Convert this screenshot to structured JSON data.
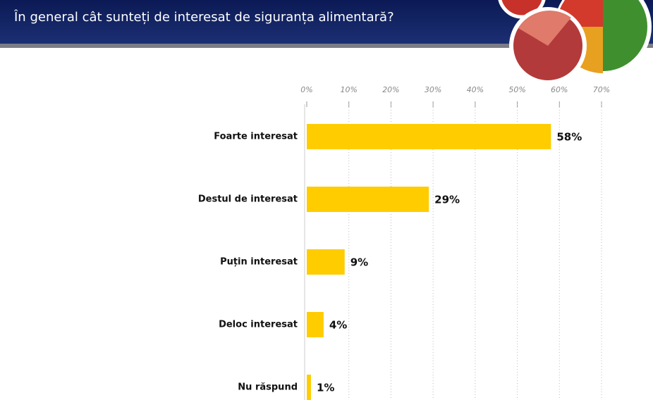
{
  "chart_data": {
    "type": "hbar",
    "title": "În general cât sunteți de interesat de siguranța alimentară?",
    "categories": [
      "Foarte interesat",
      "Destul de interesat",
      "Puțin interesat",
      "Deloc interesat",
      "Nu răspund"
    ],
    "values": [
      58,
      29,
      9,
      4,
      1
    ],
    "value_labels": [
      "58%",
      "29%",
      "9%",
      "4%",
      "1%"
    ],
    "color": "#ffcc00",
    "xlim": [
      0,
      70
    ],
    "xticks": [
      {
        "value": 0,
        "label": "0%"
      },
      {
        "value": 10,
        "label": "10%"
      },
      {
        "value": 20,
        "label": "20%"
      },
      {
        "value": 30,
        "label": "30%"
      },
      {
        "value": 40,
        "label": "40%"
      },
      {
        "value": 50,
        "label": "50%"
      },
      {
        "value": 60,
        "label": "60%"
      },
      {
        "value": 70,
        "label": "70%"
      }
    ],
    "grid": true
  }
}
